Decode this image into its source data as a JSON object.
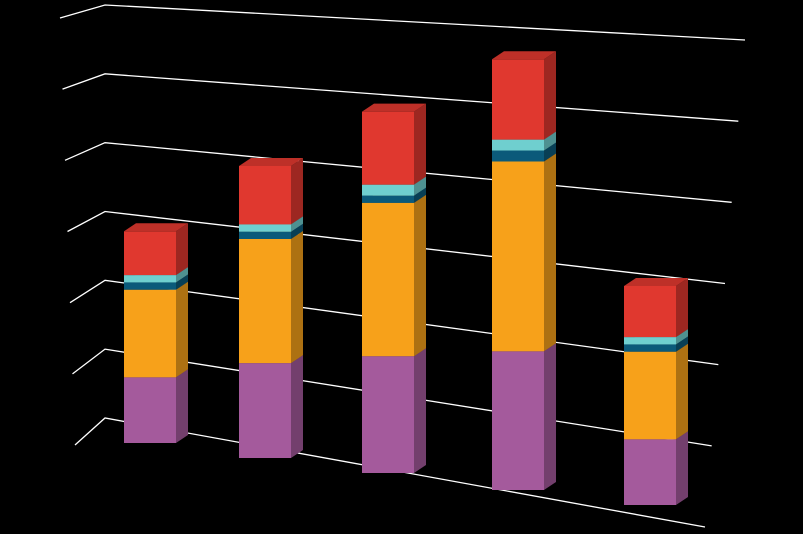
{
  "chart_data": {
    "type": "bar3d_stacked",
    "categories": [
      null,
      null,
      null,
      null,
      null
    ],
    "series": [
      {
        "color": "#a45a9c",
        "values": [
          0.9,
          1.3,
          1.6,
          1.9,
          0.9
        ]
      },
      {
        "color": "#f7a11a",
        "values": [
          1.2,
          1.7,
          2.1,
          2.6,
          1.2
        ]
      },
      {
        "color": "#0b5a7a",
        "values": [
          0.1,
          0.1,
          0.1,
          0.15,
          0.1
        ]
      },
      {
        "color": "#6fcfcf",
        "values": [
          0.1,
          0.1,
          0.15,
          0.15,
          0.1
        ]
      },
      {
        "color": "#e0382f",
        "values": [
          0.6,
          0.8,
          1.0,
          1.1,
          0.7
        ]
      }
    ],
    "ylim": [
      0,
      6
    ],
    "yticks": [
      0,
      1,
      2,
      3,
      4,
      5,
      6
    ],
    "grid": true
  }
}
